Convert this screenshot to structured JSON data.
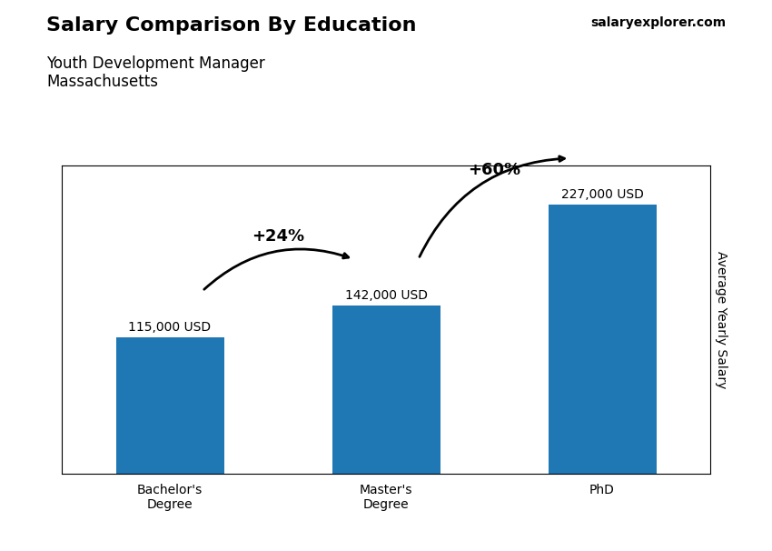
{
  "chart_data": {
    "type": "bar",
    "title": "Salary Comparison By Education",
    "subtitle": "Youth Development Manager\nMassachusetts",
    "source": "salaryexplorer.com",
    "y_label": "Average Yearly Salary",
    "categories": [
      "Bachelor's\nDegree",
      "Master's\nDegree",
      "PhD"
    ],
    "values": [
      115000,
      142000,
      227000
    ],
    "value_labels": [
      "115,000 USD",
      "142,000 USD",
      "227,000 USD"
    ],
    "data_labels": true,
    "annotations": [
      "+24%",
      "+60%"
    ],
    "ylim": [
      0,
      260000
    ],
    "yticks": [],
    "tick_labels": "x",
    "grid": false
  }
}
